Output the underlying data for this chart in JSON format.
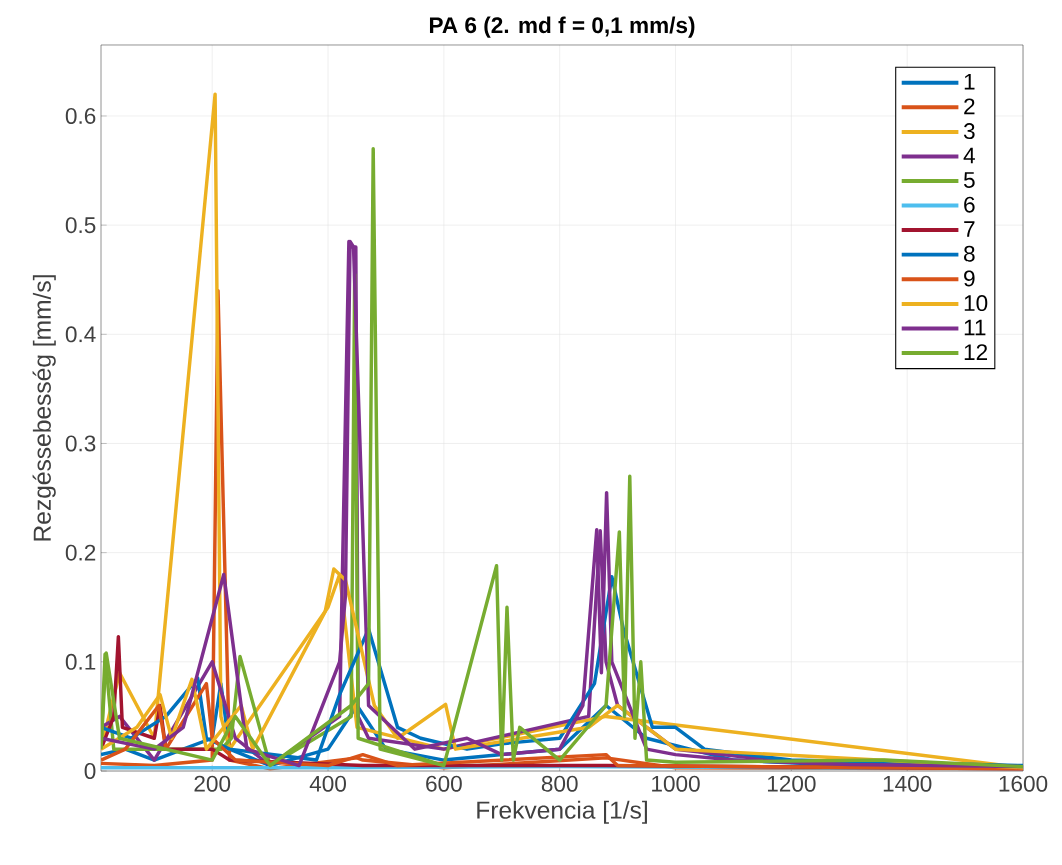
{
  "chart_data": {
    "type": "line",
    "title": "PA 6 (2. md f = 0,1 mm/s)",
    "xlabel": "Frekvencia [1/s]",
    "ylabel": "Rezgéssebesség [mm/s]",
    "xlim": [
      8,
      1600
    ],
    "ylim": [
      0,
      0.665
    ],
    "xticks": [
      200,
      400,
      600,
      800,
      1000,
      1200,
      1400,
      1600
    ],
    "yticks": [
      0,
      0.1,
      0.2,
      0.3,
      0.4,
      0.5,
      0.6
    ],
    "grid": true,
    "legend": "top right",
    "series": [
      {
        "name": "1",
        "color": "#0072bd",
        "x": [
          8,
          50,
          100,
          150,
          200,
          215,
          230,
          300,
          400,
          450,
          500,
          600,
          800,
          880,
          950,
          1100,
          1300,
          1600
        ],
        "values": [
          0.015,
          0.02,
          0.01,
          0.02,
          0.03,
          0.08,
          0.02,
          0.005,
          0.02,
          0.06,
          0.02,
          0.01,
          0.02,
          0.06,
          0.03,
          0.01,
          0.005,
          0.003
        ]
      },
      {
        "name": "2",
        "color": "#d95319",
        "x": [
          8,
          100,
          200,
          210,
          230,
          300,
          450,
          460,
          600,
          880,
          1000,
          1600
        ],
        "values": [
          0.007,
          0.005,
          0.01,
          0.44,
          0.01,
          0.002,
          0.012,
          0.01,
          0.003,
          0.012,
          0.003,
          0.002
        ]
      },
      {
        "name": "3",
        "color": "#edb120",
        "x": [
          8,
          40,
          100,
          205,
          215,
          230,
          400,
          420,
          450,
          600,
          880,
          1600
        ],
        "values": [
          0.02,
          0.09,
          0.03,
          0.62,
          0.05,
          0.02,
          0.15,
          0.18,
          0.04,
          0.02,
          0.05,
          0.003
        ]
      },
      {
        "name": "4",
        "color": "#7e2f8e",
        "x": [
          8,
          40,
          100,
          200,
          218,
          222,
          240,
          300,
          420,
          436,
          440,
          448,
          452,
          470,
          600,
          850,
          870,
          880,
          900,
          1000,
          1200,
          1600
        ],
        "values": [
          0.04,
          0.05,
          0.01,
          0.1,
          null,
          null,
          0.03,
          0.005,
          0.05,
          0.485,
          0.48,
          0.48,
          0.05,
          0.03,
          0.02,
          0.05,
          0.22,
          0.1,
          0.06,
          0.02,
          0.008,
          0.004
        ]
      },
      {
        "name": "5",
        "color": "#77ac30",
        "x": [
          8,
          15,
          30,
          200,
          212,
          216,
          229,
          233,
          248,
          300,
          440,
          446,
          452,
          600,
          1600
        ],
        "values": [
          0.02,
          0.107,
          0.02,
          0.02,
          null,
          0.02,
          null,
          0.03,
          0.105,
          0.005,
          0.05,
          0.455,
          0.03,
          0.005,
          0.003
        ]
      },
      {
        "name": "6",
        "color": "#4dbeee",
        "x": [
          8,
          400,
          800,
          1600
        ],
        "values": [
          0.003,
          0.003,
          0.004,
          0.002
        ]
      },
      {
        "name": "7",
        "color": "#a2142f",
        "x": [
          8,
          30,
          38,
          45,
          100,
          110,
          120,
          200,
          230,
          460,
          880,
          1600
        ],
        "values": [
          0.02,
          0.05,
          0.123,
          0.04,
          0.03,
          0.06,
          0.02,
          0.02,
          0.01,
          0.005,
          0.005,
          0.002
        ]
      },
      {
        "name": "8",
        "color": "#0072bd",
        "x": [
          8,
          60,
          120,
          175,
          190,
          230,
          380,
          420,
          470,
          520,
          560,
          640,
          700,
          800,
          860,
          890,
          910,
          960,
          1000,
          1050,
          1200,
          1600
        ],
        "values": [
          0.04,
          0.03,
          0.05,
          0.085,
          0.03,
          0.02,
          0.01,
          0.07,
          0.13,
          0.04,
          0.03,
          0.02,
          0.025,
          0.03,
          0.08,
          0.178,
          0.13,
          0.04,
          0.04,
          0.02,
          0.01,
          0.005
        ]
      },
      {
        "name": "9",
        "color": "#d95319",
        "x": [
          8,
          50,
          108,
          120,
          190,
          200,
          240,
          400,
          460,
          520,
          880,
          900,
          1600
        ],
        "values": [
          0.01,
          0.02,
          0.06,
          0.02,
          0.08,
          0.03,
          0.01,
          0.005,
          0.015,
          0.005,
          0.015,
          0.005,
          0.002
        ]
      },
      {
        "name": "10",
        "color": "#edb120",
        "x": [
          8,
          70,
          110,
          130,
          165,
          190,
          250,
          270,
          395,
          410,
          430,
          480,
          520,
          603,
          620,
          850,
          900,
          1000,
          1600
        ],
        "values": [
          0.02,
          0.04,
          0.07,
          0.03,
          0.084,
          0.02,
          0.06,
          0.02,
          0.146,
          0.185,
          0.175,
          0.06,
          0.03,
          0.061,
          0.02,
          0.04,
          0.06,
          0.02,
          0.003
        ]
      },
      {
        "name": "11",
        "color": "#7e2f8e",
        "x": [
          8,
          100,
          150,
          220,
          260,
          350,
          420,
          430,
          438,
          444,
          470,
          550,
          640,
          700,
          800,
          840,
          864,
          872,
          881,
          890,
          950,
          1000,
          1100,
          1300,
          1600
        ],
        "values": [
          0.03,
          0.02,
          0.04,
          0.18,
          0.02,
          0.005,
          0.1,
          0.16,
          0.485,
          0.48,
          0.06,
          0.02,
          0.03,
          0.015,
          0.02,
          0.06,
          0.221,
          0.09,
          0.255,
          0.1,
          0.02,
          0.015,
          0.01,
          0.006,
          0.004
        ]
      },
      {
        "name": "12",
        "color": "#77ac30",
        "x": [
          8,
          17,
          40,
          200,
          224,
          240,
          300,
          440,
          462,
          470,
          478,
          490,
          600,
          691,
          700,
          709,
          720,
          731,
          800,
          880,
          903,
          912,
          921,
          930,
          940,
          950,
          1000,
          1360,
          1600
        ],
        "values": [
          0.02,
          0.108,
          0.03,
          0.01,
          null,
          0.05,
          0.005,
          0.06,
          null,
          0.08,
          0.57,
          0.02,
          0.005,
          0.188,
          0.01,
          0.15,
          0.01,
          0.04,
          0.01,
          0.06,
          0.219,
          0.05,
          0.27,
          0.03,
          0.1,
          0.01,
          0.008,
          0.01,
          0.004
        ]
      }
    ]
  }
}
